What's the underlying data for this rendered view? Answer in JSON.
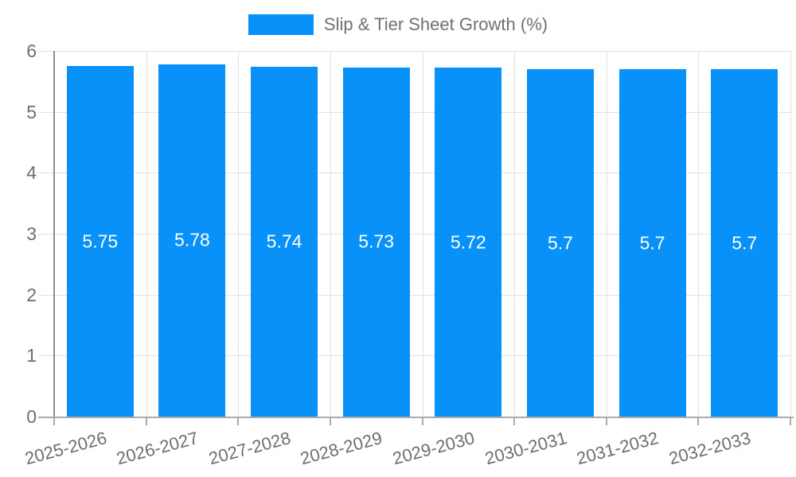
{
  "legend": {
    "label": "Slip & Tier Sheet Growth (%)",
    "swatch_color": "#0891f8"
  },
  "colors": {
    "bar": "#0891f8",
    "bar_value_text": "#ffffff",
    "axis_text": "#6e6e6e",
    "legend_text": "#717171",
    "gridline": "#e2e2e2",
    "y_axis_line": "#8f8f8f",
    "x_axis_line": "#ababab"
  },
  "chart_data": {
    "type": "bar",
    "title": "Slip & Tier Sheet Growth (%)",
    "xlabel": "",
    "ylabel": "",
    "categories": [
      "2025-2026",
      "2026-2027",
      "2027-2028",
      "2028-2029",
      "2029-2030",
      "2030-2031",
      "2031-2032",
      "2032-2033"
    ],
    "series": [
      {
        "name": "Slip & Tier Sheet Growth (%)",
        "values": [
          5.75,
          5.78,
          5.74,
          5.73,
          5.72,
          5.7,
          5.7,
          5.7
        ]
      }
    ],
    "value_labels": [
      "5.75",
      "5.78",
      "5.74",
      "5.73",
      "5.72",
      "5.7",
      "5.7",
      "5.7"
    ],
    "ylim": [
      0,
      6
    ],
    "yticks": [
      0,
      1,
      2,
      3,
      4,
      5,
      6
    ],
    "grid": true,
    "legend_position": "top",
    "x_label_rotation_deg": -15
  }
}
